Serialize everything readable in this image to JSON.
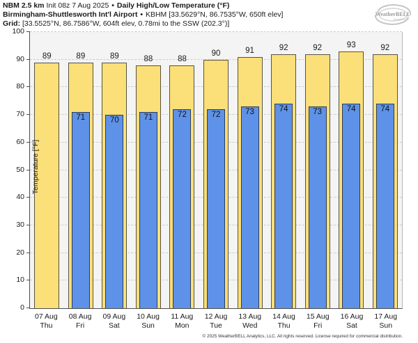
{
  "title": {
    "model": "NBM 2.5 km",
    "init": "Init 08z 7 Aug 2025",
    "separator": "•",
    "product": "Daily High/Low Temperature (°F)",
    "station_name": "Birmingham-Shuttlesworth Int'l Airport",
    "station_info": "KBHM [33.5629°N, 86.7535°W, 650ft elev]",
    "grid_label": "Grid:",
    "grid_info": "[33.5525°N, 86.7586°W, 604ft elev, 0.78mi to the SSW (202.3°)]"
  },
  "logo": {
    "brand": "WeatherBELL",
    "sub": "Analytics LLC"
  },
  "chart_data": {
    "type": "bar",
    "title": "Daily High/Low Temperature (°F)",
    "categories": [
      "07 Aug",
      "08 Aug",
      "09 Aug",
      "10 Aug",
      "11 Aug",
      "12 Aug",
      "13 Aug",
      "14 Aug",
      "15 Aug",
      "16 Aug",
      "17 Aug"
    ],
    "category_days": [
      "Thu",
      "Fri",
      "Sat",
      "Sun",
      "Mon",
      "Tue",
      "Wed",
      "Thu",
      "Fri",
      "Sat",
      "Sun"
    ],
    "series": [
      {
        "name": "High",
        "color": "#fbdf79",
        "values": [
          89,
          89,
          89,
          88,
          88,
          90,
          91,
          92,
          92,
          93,
          92
        ]
      },
      {
        "name": "Low",
        "color": "#5e92e8",
        "values": [
          null,
          71,
          70,
          71,
          72,
          72,
          73,
          74,
          73,
          74,
          74
        ]
      }
    ],
    "xlabel": "",
    "ylabel": "Temperature [°F]",
    "ylim": [
      0,
      100
    ],
    "yticks": [
      0,
      10,
      20,
      30,
      40,
      50,
      60,
      70,
      80,
      90,
      100
    ],
    "grid": true,
    "grid_style": "dashed",
    "legend_position": "none",
    "plot_background": "#f4f4f4"
  },
  "footer": "© 2025 WeatherBELL Analytics, LLC. All rights reserved. License required for commercial distribution."
}
